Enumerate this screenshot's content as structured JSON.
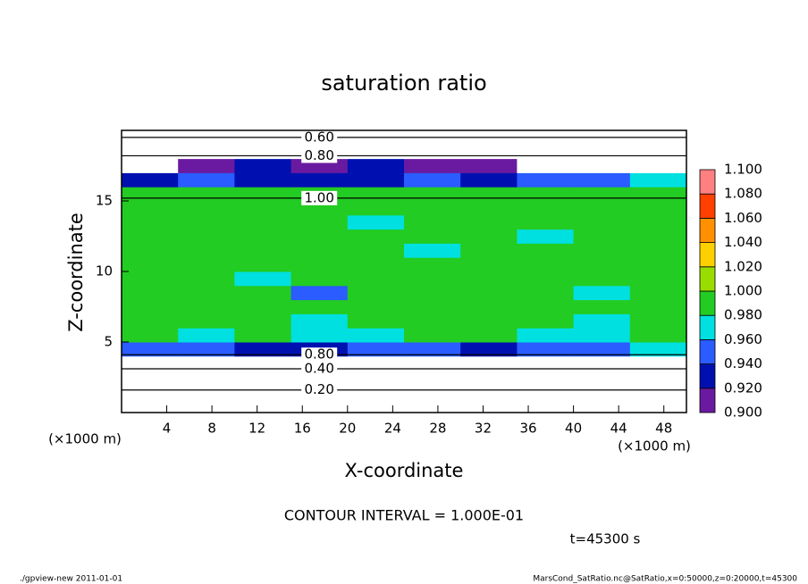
{
  "chart_data": {
    "type": "contour",
    "title": "saturation ratio",
    "xlabel": "X-coordinate",
    "ylabel": "Z-coordinate",
    "xunit_labels": [
      "(×1000 m)",
      "(×1000 m)"
    ],
    "xlim": [
      0,
      50
    ],
    "ylim": [
      0,
      20
    ],
    "xticks": [
      4,
      8,
      12,
      16,
      20,
      24,
      28,
      32,
      36,
      40,
      44,
      48
    ],
    "yticks": [
      5,
      10,
      15
    ],
    "xbins": [
      0,
      5,
      10,
      15,
      20,
      25,
      30,
      35,
      40,
      45,
      50
    ],
    "zbins": [
      0,
      1,
      2,
      3,
      4,
      5,
      6,
      7,
      8,
      9,
      10,
      11,
      12,
      13,
      14,
      15,
      16,
      17,
      18,
      19,
      20
    ],
    "values": [
      [
        0.15,
        0.15,
        0.15,
        0.15,
        0.15,
        0.15,
        0.15,
        0.15,
        0.15,
        0.15
      ],
      [
        0.2,
        0.2,
        0.2,
        0.2,
        0.2,
        0.2,
        0.2,
        0.2,
        0.2,
        0.2
      ],
      [
        0.3,
        0.3,
        0.3,
        0.3,
        0.3,
        0.3,
        0.3,
        0.3,
        0.3,
        0.3
      ],
      [
        0.5,
        0.5,
        0.5,
        0.5,
        0.5,
        0.5,
        0.5,
        0.5,
        0.5,
        0.5
      ],
      [
        0.94,
        0.95,
        0.93,
        0.92,
        0.95,
        0.94,
        0.93,
        0.95,
        0.94,
        0.96
      ],
      [
        0.99,
        0.97,
        0.99,
        0.96,
        0.97,
        0.99,
        0.98,
        0.97,
        0.96,
        0.99
      ],
      [
        0.99,
        0.99,
        0.99,
        0.97,
        0.99,
        0.99,
        0.99,
        0.98,
        0.97,
        0.99
      ],
      [
        0.99,
        0.99,
        0.98,
        0.99,
        0.99,
        0.99,
        0.99,
        0.99,
        0.99,
        0.99
      ],
      [
        0.99,
        0.99,
        0.99,
        0.95,
        0.99,
        0.99,
        0.99,
        0.99,
        0.97,
        0.99
      ],
      [
        0.99,
        0.99,
        0.97,
        0.99,
        0.99,
        0.99,
        0.99,
        0.99,
        0.99,
        0.99
      ],
      [
        0.99,
        0.99,
        0.99,
        0.99,
        0.98,
        0.99,
        0.99,
        0.99,
        0.99,
        0.99
      ],
      [
        0.99,
        0.99,
        0.99,
        0.99,
        0.99,
        0.97,
        0.99,
        0.99,
        0.99,
        0.99
      ],
      [
        0.99,
        0.99,
        0.99,
        0.99,
        0.99,
        0.99,
        0.99,
        0.97,
        0.99,
        0.99
      ],
      [
        0.99,
        0.99,
        0.99,
        0.99,
        0.97,
        0.99,
        0.99,
        0.99,
        0.99,
        0.99
      ],
      [
        0.99,
        0.99,
        0.99,
        0.99,
        0.99,
        0.99,
        0.99,
        0.99,
        0.99,
        0.99
      ],
      [
        0.99,
        0.99,
        0.99,
        0.99,
        0.99,
        0.99,
        0.99,
        0.99,
        0.99,
        0.99
      ],
      [
        0.93,
        0.94,
        0.93,
        0.92,
        0.93,
        0.94,
        0.93,
        0.94,
        0.95,
        0.96
      ],
      [
        0.85,
        0.91,
        0.92,
        0.91,
        0.92,
        0.91,
        0.91,
        0.85,
        0.85,
        0.85
      ],
      [
        0.75,
        0.75,
        0.75,
        0.75,
        0.75,
        0.75,
        0.75,
        0.75,
        0.75,
        0.75
      ],
      [
        0.6,
        0.6,
        0.6,
        0.6,
        0.6,
        0.6,
        0.6,
        0.6,
        0.6,
        0.6
      ]
    ],
    "below_color": "#ffffff",
    "colorbar": {
      "levels": [
        {
          "value": 0.9,
          "label": "0.900"
        },
        {
          "value": 0.92,
          "label": "0.920"
        },
        {
          "value": 0.94,
          "label": "0.940"
        },
        {
          "value": 0.96,
          "label": "0.960"
        },
        {
          "value": 0.98,
          "label": "0.980"
        },
        {
          "value": 1.0,
          "label": "1.000"
        },
        {
          "value": 1.02,
          "label": "1.020"
        },
        {
          "value": 1.04,
          "label": "1.040"
        },
        {
          "value": 1.06,
          "label": "1.060"
        },
        {
          "value": 1.08,
          "label": "1.080"
        },
        {
          "value": 1.1,
          "label": "1.100"
        }
      ],
      "colors": [
        "#6a1aa0",
        "#0010b0",
        "#2a5cff",
        "#00e0e0",
        "#22cc22",
        "#99dd00",
        "#ffd000",
        "#ff9000",
        "#ff4000",
        "#ff8080"
      ]
    },
    "contours": [
      {
        "level": {
          "value": 0.6,
          "label": "0.60"
        },
        "z": 19.5
      },
      {
        "level": {
          "value": 0.8,
          "label": "0.80"
        },
        "z": 18.2
      },
      {
        "level": {
          "value": 1.0,
          "label": "1.00"
        },
        "z": 15.2
      },
      {
        "level": {
          "value": 0.8,
          "label": "0.80"
        },
        "z": 4.1
      },
      {
        "level": {
          "value": 0.4,
          "label": "0.40"
        },
        "z": 3.1
      },
      {
        "level": {
          "value": 0.2,
          "label": "0.20"
        },
        "z": 1.6
      }
    ],
    "contour_interval_text": "CONTOUR INTERVAL = 1.000E-01",
    "time_text": "t=45300 s",
    "footer_left": "./gpview-new   2011-01-01",
    "footer_right": "MarsCond_SatRatio.nc@SatRatio,x=0:50000,z=0:20000,t=45300"
  }
}
